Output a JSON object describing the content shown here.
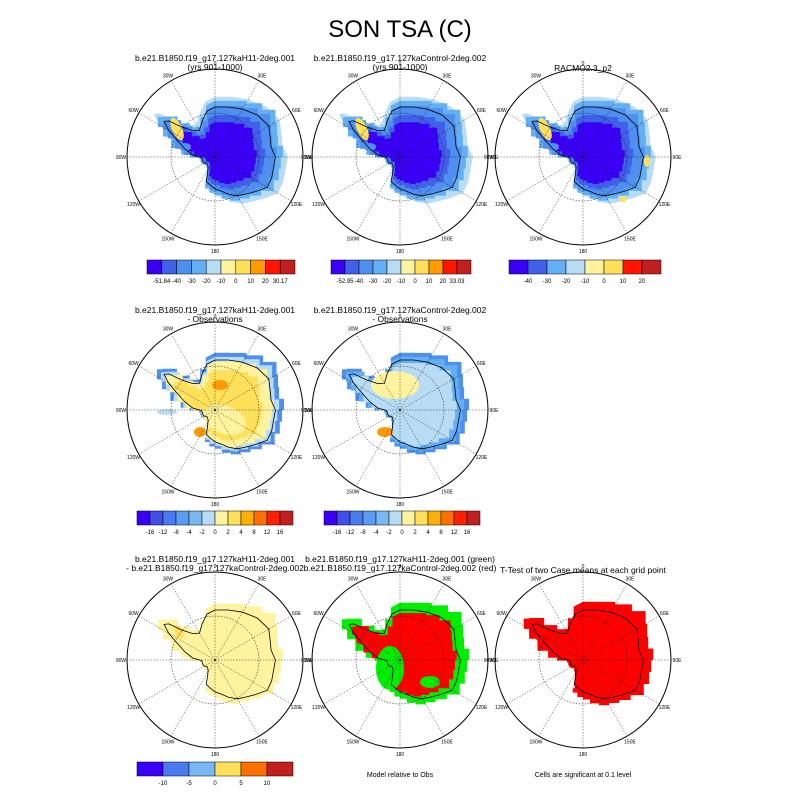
{
  "page": {
    "title": "SON TSA (C)"
  },
  "colors": {
    "cold1": "#3a00f5",
    "cold2": "#4060e8",
    "cold3": "#4f8ff0",
    "cold4": "#62b0f3",
    "pale_blue": "#b9dcf5",
    "pale_yellow": "#fff3a0",
    "yellow": "#ffe05a",
    "orange": "#ff9a00",
    "red": "#ff1500",
    "dark_red": "#c02020",
    "green": "#00ee00",
    "sig_red": "#ff0000"
  },
  "map_labels": {
    "lon": [
      "0",
      "30E",
      "60E",
      "90E",
      "120E",
      "150E",
      "180",
      "150W",
      "120W",
      "90W",
      "60W",
      "30W"
    ]
  },
  "panels": [
    {
      "id": "p1",
      "title": "b.e21.B1850.f19_g17.127kaH11-2deg.001\n(yrs 901-1000)",
      "style": "abs",
      "colorbar": [
        "-51.84",
        "-40",
        "-30",
        "-20",
        "-10",
        "0",
        "10",
        "20",
        "30.17"
      ]
    },
    {
      "id": "p2",
      "title": "b.e21.B1850.f19_g17.127kaControl-2deg.002\n(yrs 901-1000)",
      "style": "abs",
      "colorbar": [
        "-52.95",
        "-40",
        "-30",
        "-20",
        "-10",
        "0",
        "10",
        "20",
        "33.03"
      ]
    },
    {
      "id": "p3",
      "title": "RACMO2.3_p2",
      "style": "abs3",
      "colorbar": [
        "-40",
        "-30",
        "-20",
        "-10",
        "0",
        "10",
        "20"
      ]
    },
    {
      "id": "p4",
      "title": "b.e21.B1850.f19_g17.127kaH11-2deg.001\n- Observations",
      "style": "diffwarm",
      "colorbar": [
        "-16",
        "-12",
        "-8",
        "-4",
        "-2",
        "0",
        "2",
        "4",
        "8",
        "12",
        "16"
      ]
    },
    {
      "id": "p5",
      "title": "b.e21.B1850.f19_g17.127kaControl-2deg.002\n- Observations",
      "style": "diffcool",
      "colorbar": [
        "-16",
        "-12",
        "-8",
        "-4",
        "-2",
        "0",
        "2",
        "4",
        "8",
        "12",
        "16"
      ]
    },
    {
      "id": "p7",
      "title": "b.e21.B1850.f19_g17.127kaH11-2deg.001\n- b.e21.B1850.f19_g17.127kaControl-2deg.002",
      "style": "casediff",
      "colorbar": [
        "-10",
        "-5",
        "0",
        "5",
        "10"
      ]
    },
    {
      "id": "p8",
      "title": "b.e21.B1850.f19_g17.127kaH11-2deg.001 (green)\nb.e21.B1850.f19_g17.127kaControl-2deg.002 (red)",
      "style": "greenred",
      "note": "Model relative to Obs"
    },
    {
      "id": "p9",
      "title": "T-Test of two Case means at each grid point",
      "style": "ttest",
      "note": "Cells are significant at 0.1 level"
    }
  ],
  "chart_data": [
    {
      "type": "heatmap",
      "title": "b.e21.B1850.f19_g17.127kaH11-2deg.001 (yrs 901-1000)",
      "projection": "south-polar stereographic",
      "colorbar_labels": [
        "-51.84",
        "-40",
        "-30",
        "-20",
        "-10",
        "0",
        "10",
        "20",
        "30.17"
      ],
      "range": [
        -51.84,
        30.17
      ]
    },
    {
      "type": "heatmap",
      "title": "b.e21.B1850.f19_g17.127kaControl-2deg.002 (yrs 901-1000)",
      "projection": "south-polar stereographic",
      "colorbar_labels": [
        "-52.95",
        "-40",
        "-30",
        "-20",
        "-10",
        "0",
        "10",
        "20",
        "33.03"
      ],
      "range": [
        -52.95,
        33.03
      ]
    },
    {
      "type": "heatmap",
      "title": "RACMO2.3_p2",
      "projection": "south-polar stereographic",
      "colorbar_labels": [
        "-40",
        "-30",
        "-20",
        "-10",
        "0",
        "10",
        "20"
      ]
    },
    {
      "type": "heatmap",
      "title": "b.e21.B1850.f19_g17.127kaH11-2deg.001 - Observations",
      "projection": "south-polar stereographic",
      "colorbar_labels": [
        "-16",
        "-12",
        "-8",
        "-4",
        "-2",
        "0",
        "2",
        "4",
        "8",
        "12",
        "16"
      ]
    },
    {
      "type": "heatmap",
      "title": "b.e21.B1850.f19_g17.127kaControl-2deg.002 - Observations",
      "projection": "south-polar stereographic",
      "colorbar_labels": [
        "-16",
        "-12",
        "-8",
        "-4",
        "-2",
        "0",
        "2",
        "4",
        "8",
        "12",
        "16"
      ]
    },
    {
      "type": "heatmap",
      "title": "b.e21.B1850.f19_g17.127kaH11-2deg.001 - b.e21.B1850.f19_g17.127kaControl-2deg.002",
      "projection": "south-polar stereographic",
      "colorbar_labels": [
        "-10",
        "-5",
        "0",
        "5",
        "10"
      ]
    },
    {
      "type": "heatmap",
      "title": "b.e21.B1850.f19_g17.127kaH11-2deg.001 (green) b.e21.B1850.f19_g17.127kaControl-2deg.002 (red)",
      "projection": "south-polar stereographic",
      "annotation": "Model relative to Obs"
    },
    {
      "type": "heatmap",
      "title": "T-Test of two Case means at each grid point",
      "projection": "south-polar stereographic",
      "annotation": "Cells are significant at 0.1 level"
    }
  ]
}
